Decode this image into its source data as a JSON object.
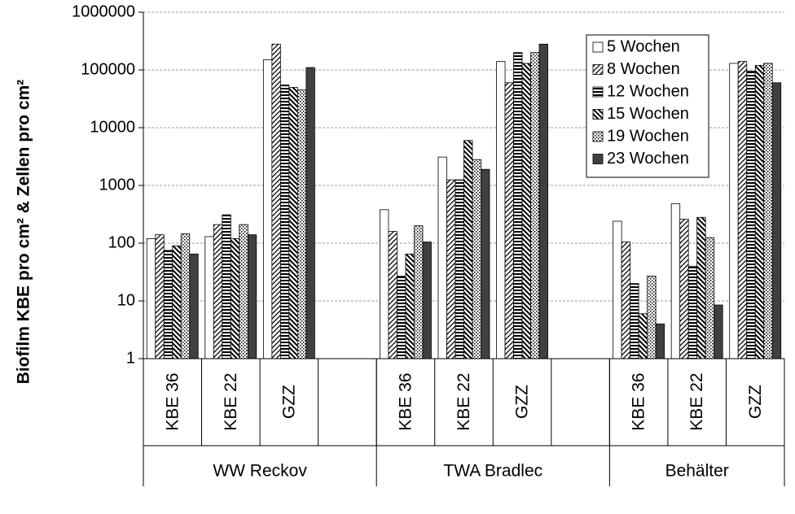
{
  "chart_data": {
    "type": "bar",
    "y_label": "Biofilm KBE pro cm² & Zellen pro cm²",
    "log_scale": true,
    "grid": true,
    "legend": "upper right",
    "ylim": [
      1,
      1000000
    ],
    "yticks": [
      1,
      10,
      100,
      1000,
      10000,
      100000,
      1000000
    ],
    "groups": [
      {
        "label": "WW Reckov",
        "categories": [
          "KBE 36",
          "KBE 22",
          "GZZ",
          null
        ]
      },
      {
        "label": "TWA Bradlec",
        "categories": [
          "KBE 36",
          "KBE 22",
          "GZZ",
          null
        ]
      },
      {
        "label": "Behälter",
        "categories": [
          "KBE 36",
          "KBE 22",
          "GZZ"
        ]
      }
    ],
    "series": [
      {
        "name": "5 Wochen",
        "color": "#ffffff",
        "pattern": "none",
        "values": [
          120,
          130,
          150000,
          null,
          380,
          3100,
          140000,
          null,
          240,
          480,
          130000
        ]
      },
      {
        "name": "8 Wochen",
        "color": "#ffffff",
        "pattern": "diag-up",
        "values": [
          140,
          210,
          280000,
          null,
          160,
          1250,
          60000,
          null,
          105,
          260,
          140000
        ]
      },
      {
        "name": "12 Wochen",
        "color": "#ffffff",
        "pattern": "horizontal",
        "values": [
          75,
          310,
          55000,
          null,
          27,
          1250,
          200000,
          null,
          20,
          40,
          95000
        ]
      },
      {
        "name": "15 Wochen",
        "color": "#ffffff",
        "pattern": "diag-down",
        "values": [
          90,
          120,
          50000,
          null,
          65,
          6000,
          130000,
          null,
          6,
          280,
          120000
        ]
      },
      {
        "name": "19 Wochen",
        "color": "#ffffff",
        "pattern": "dots",
        "values": [
          145,
          210,
          45000,
          null,
          200,
          2800,
          200000,
          null,
          27,
          125,
          130000
        ]
      },
      {
        "name": "23 Wochen",
        "color": "#404040",
        "pattern": "none",
        "values": [
          65,
          140,
          110000,
          null,
          105,
          1900,
          280000,
          null,
          4,
          8.5,
          60000
        ]
      }
    ]
  }
}
